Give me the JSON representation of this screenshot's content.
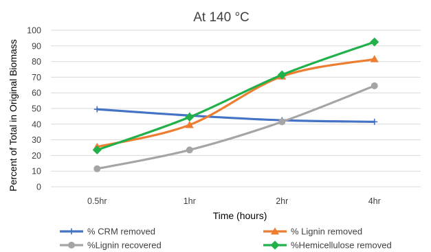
{
  "chart_data": {
    "type": "line",
    "title": "At 140 °C",
    "xlabel": "Time (hours)",
    "ylabel": "Percent of Total in Original Biomass",
    "categories": [
      "0.5hr",
      "1hr",
      "2hr",
      "4hr"
    ],
    "ylim": [
      0,
      100
    ],
    "yticks": [
      0,
      10,
      20,
      30,
      40,
      50,
      60,
      70,
      80,
      90,
      100
    ],
    "grid": true,
    "legend_position": "bottom",
    "series": [
      {
        "name": "% CRM removed",
        "color": "#4472c4",
        "marker": "plus",
        "values": [
          49.5,
          45.5,
          42.5,
          41.5
        ]
      },
      {
        "name": "% Lignin removed",
        "color": "#ed7d31",
        "marker": "triangle",
        "values": [
          25.5,
          39.5,
          70.5,
          81.5
        ]
      },
      {
        "name": "%Lignin recovered",
        "color": "#a5a5a5",
        "marker": "circle",
        "values": [
          11.5,
          23.5,
          41.5,
          64.5
        ]
      },
      {
        "name": "%Hemicellulose removed",
        "color": "#21b14b",
        "marker": "diamond",
        "values": [
          23.5,
          44.5,
          71.5,
          92.5
        ]
      }
    ]
  }
}
